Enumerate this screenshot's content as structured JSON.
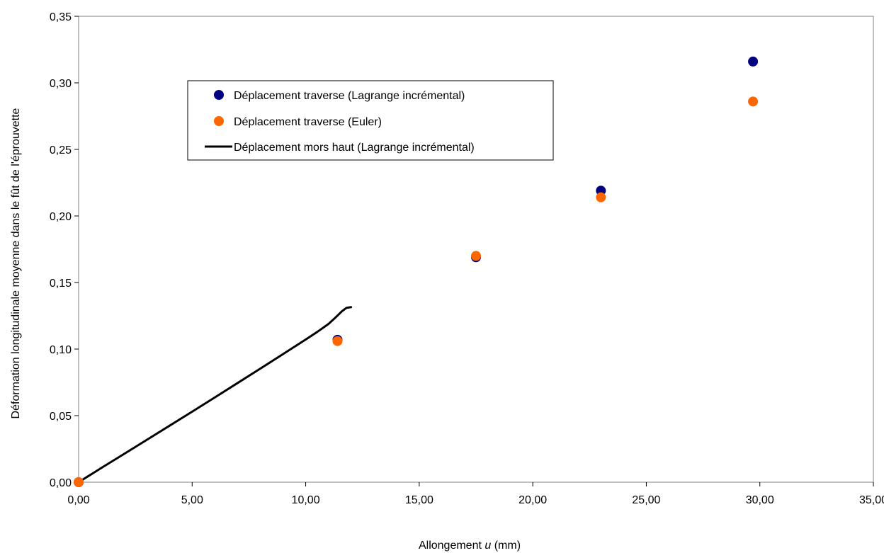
{
  "chart_data": {
    "type": "scatter",
    "title": "",
    "xlabel": "Allongement u (mm)",
    "xlabel_parts": {
      "before": "Allongement ",
      "italic": "u",
      "after": " (mm)"
    },
    "ylabel": "Déformation longitudinale moyenne dans le fût de l'éprouvette",
    "xlim": [
      0,
      35
    ],
    "ylim": [
      0,
      0.35
    ],
    "x_ticks": [
      0,
      5,
      10,
      15,
      20,
      25,
      30,
      35
    ],
    "y_ticks": [
      0,
      0.05,
      0.1,
      0.15,
      0.2,
      0.25,
      0.3,
      0.35
    ],
    "x_tick_labels": [
      "0,00",
      "5,00",
      "10,00",
      "15,00",
      "20,00",
      "25,00",
      "30,00",
      "35,00"
    ],
    "y_tick_labels": [
      "0,00",
      "0,05",
      "0,10",
      "0,15",
      "0,20",
      "0,25",
      "0,30",
      "0,35"
    ],
    "grid": false,
    "legend_position": "top-left",
    "series": [
      {
        "name": "Déplacement traverse (Lagrange incrémental)",
        "kind": "scatter",
        "color": "#000080",
        "x": [
          0,
          11.4,
          17.5,
          23.0,
          29.7
        ],
        "y": [
          0,
          0.107,
          0.169,
          0.219,
          0.316
        ]
      },
      {
        "name": "Déplacement traverse (Euler)",
        "kind": "scatter",
        "color": "#FF6600",
        "x": [
          0,
          11.4,
          17.5,
          23.0,
          29.7
        ],
        "y": [
          0,
          0.106,
          0.17,
          0.214,
          0.286
        ]
      },
      {
        "name": "Déplacement mors haut (Lagrange incrémental)",
        "kind": "line",
        "color": "#000000",
        "x": [
          0,
          1,
          2,
          3,
          4,
          5,
          6,
          7,
          8,
          9,
          10,
          10.5,
          11,
          11.3,
          11.6,
          11.8,
          12.0
        ],
        "y": [
          0,
          0.0107,
          0.0212,
          0.0318,
          0.0424,
          0.053,
          0.0637,
          0.0745,
          0.0853,
          0.0962,
          0.1072,
          0.1128,
          0.1188,
          0.1235,
          0.1285,
          0.131,
          0.1315
        ]
      }
    ]
  }
}
